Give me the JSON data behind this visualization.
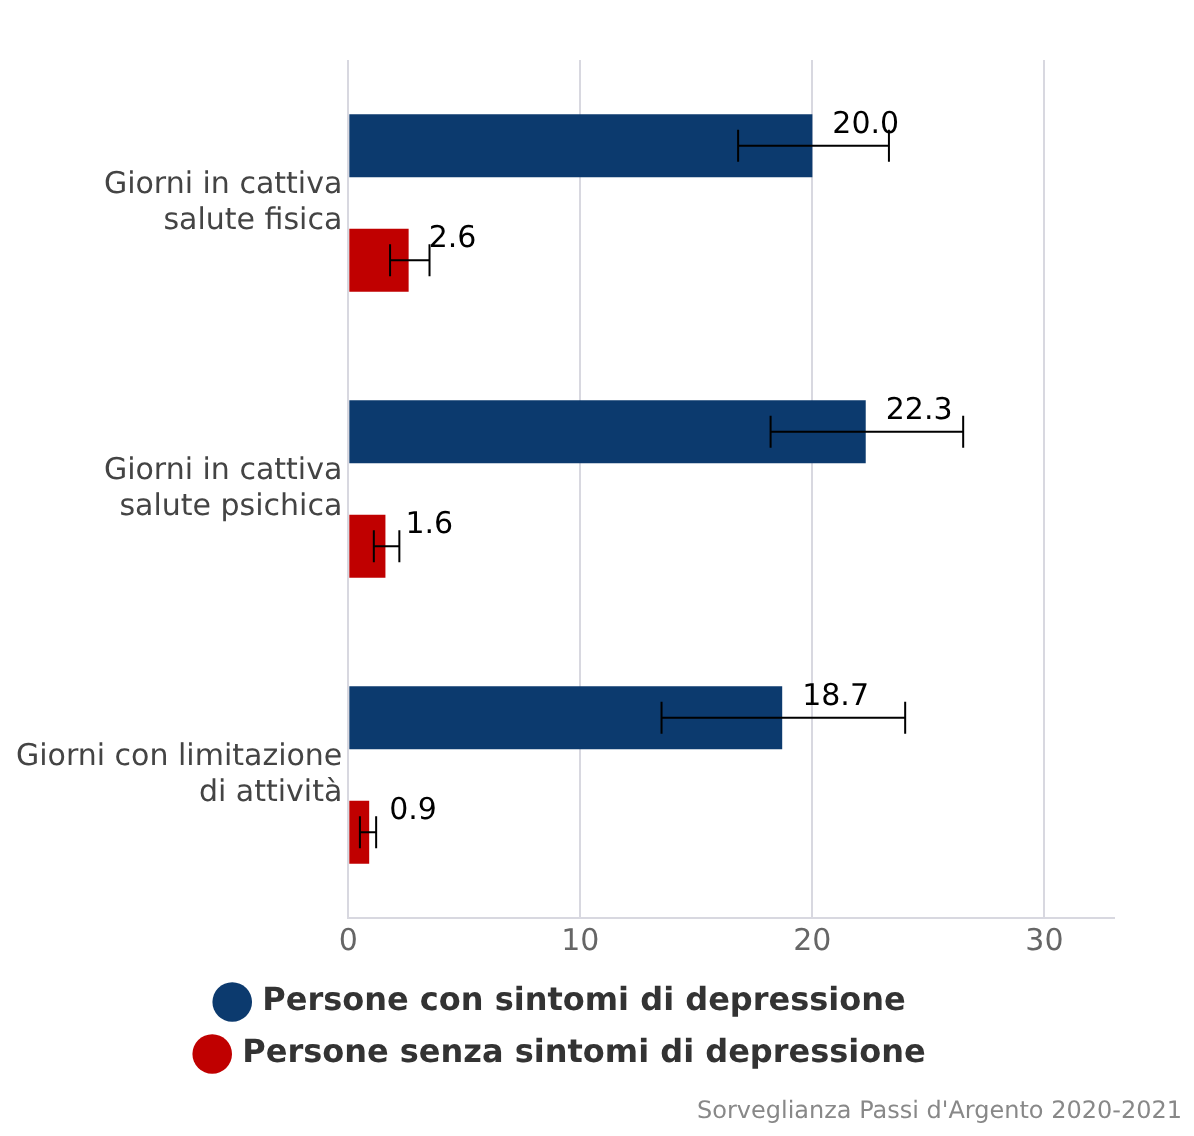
{
  "chart_data": {
    "type": "bar",
    "orientation": "horizontal",
    "categories": [
      "Giorni in cattiva\nsalute fisica",
      "Giorni in cattiva\nsalute psichica",
      "Giorni con limitazione\ndi attività"
    ],
    "series": [
      {
        "name": "Persone con sintomi di depressione",
        "color": "#0c3a6e",
        "values": [
          20.0,
          22.3,
          18.7
        ],
        "value_labels": [
          "20.0",
          "22.3",
          "18.7"
        ],
        "errors": [
          [
            16.8,
            23.3
          ],
          [
            18.2,
            26.5
          ],
          [
            13.5,
            24.0
          ]
        ]
      },
      {
        "name": "Persone senza sintomi di depressione",
        "color": "#c00000",
        "values": [
          2.6,
          1.6,
          0.9
        ],
        "value_labels": [
          "2.6",
          "1.6",
          "0.9"
        ],
        "errors": [
          [
            1.8,
            3.5
          ],
          [
            1.1,
            2.2
          ],
          [
            0.5,
            1.2
          ]
        ]
      }
    ],
    "xlim": [
      0,
      33
    ],
    "xticks": [
      0,
      10,
      20,
      30
    ],
    "grid": "x",
    "legend": "bottom",
    "annotations": [
      "Sorveglianza Passi d'Argento 2020-2021"
    ]
  }
}
